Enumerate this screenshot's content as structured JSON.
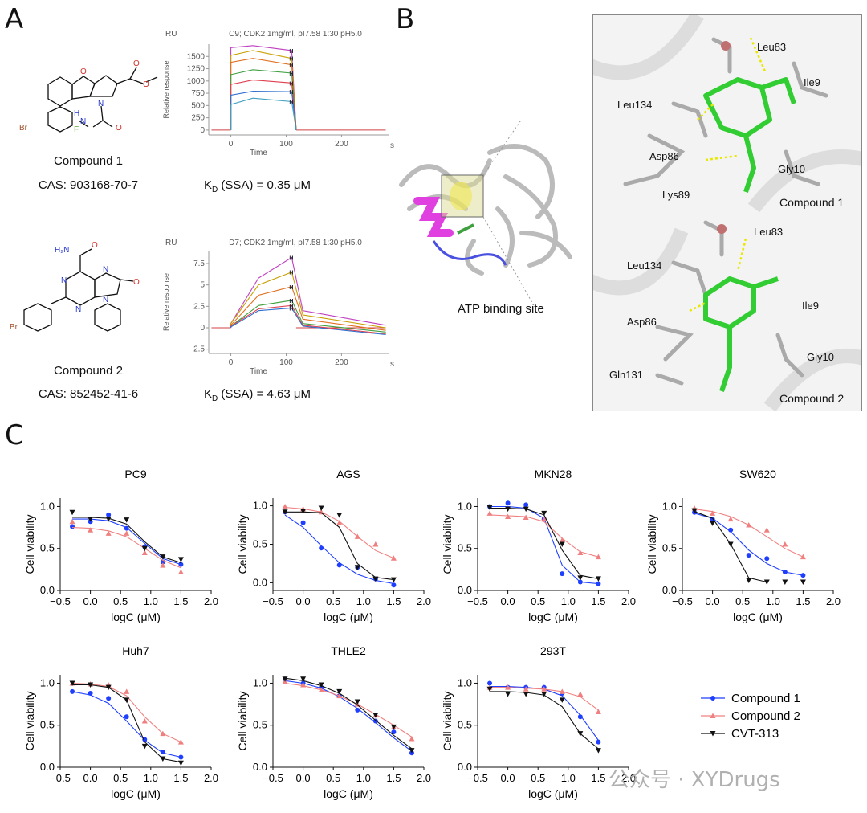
{
  "panels": {
    "a": "A",
    "b": "B",
    "c": "C"
  },
  "compound1": {
    "name": "Compound 1",
    "cas": "CAS:  903168-70-7",
    "kd_prefix": "K",
    "kd_sub": "D",
    "kd_rest": " (SSA) = 0.35 μM",
    "spr": {
      "ru": "RU",
      "title": "C9; CDK2 1mg/ml, pI7.58 1:30 pH5.0",
      "ylabel": "Relative response",
      "xlabel": "Time",
      "xunit": "s",
      "yticks": [
        "1500",
        "1250",
        "1000",
        "750",
        "500",
        "250",
        "0"
      ],
      "xticks": [
        "0",
        "100",
        "200"
      ]
    },
    "atoms": {
      "o1": "O",
      "n1": "N",
      "o2": "O",
      "o3": "O",
      "hn": "H",
      "n2": "N",
      "o4": "O",
      "br": "Br",
      "f": "F"
    }
  },
  "compound2": {
    "name": "Compound 2",
    "cas": "CAS: 852452-41-6",
    "kd_prefix": "K",
    "kd_sub": "D",
    "kd_rest": " (SSA) = 4.63 μM",
    "spr": {
      "ru": "RU",
      "title": "D7; CDK2 1mg/ml, pI7.58 1:30 pH5.0",
      "ylabel": "Relative response",
      "xlabel": "Time",
      "xunit": "s",
      "yticks": [
        "7.5",
        "5",
        "2.5",
        "0",
        "-2.5"
      ],
      "xticks": [
        "0",
        "100",
        "200"
      ]
    },
    "atoms": {
      "h2n": "H₂N",
      "o1": "O",
      "n1": "N",
      "n2": "N",
      "n3": "N",
      "n4": "N",
      "o2": "O",
      "br": "Br"
    }
  },
  "binding": {
    "site_label": "ATP binding site",
    "top": {
      "compound": "Compound 1",
      "residues": [
        "Leu83",
        "Ile9",
        "Leu134",
        "Asp86",
        "Gly10",
        "Lys89"
      ]
    },
    "bottom": {
      "compound": "Compound 2",
      "residues": [
        "Leu83",
        "Leu134",
        "Ile9",
        "Asp86",
        "Gly10",
        "Gln131"
      ]
    }
  },
  "viability": {
    "ylabel": "Cell viability",
    "xlabel": "logC (μM)",
    "legend": [
      "Compound 1",
      "Compound 2",
      "CVT-313"
    ],
    "colors": {
      "c1": "#1f3fff",
      "c2": "#f08080",
      "cvt": "#111111"
    }
  },
  "watermark": "公众号 · XYDrugs",
  "chart_data": [
    {
      "type": "line",
      "title": "C9; CDK2 1mg/ml, pI7.58 1:30 pH5.0",
      "xlabel": "Time",
      "ylabel": "Relative response",
      "xlim": [
        -40,
        285
      ],
      "ylim": [
        -100,
        1750
      ],
      "series": [
        {
          "values": [
            [
              0,
              1680
            ],
            [
              40,
              1720
            ],
            [
              110,
              1620
            ]
          ]
        },
        {
          "values": [
            [
              0,
              1520
            ],
            [
              40,
              1620
            ],
            [
              110,
              1460
            ]
          ]
        },
        {
          "values": [
            [
              0,
              1380
            ],
            [
              40,
              1460
            ],
            [
              110,
              1330
            ]
          ]
        },
        {
          "values": [
            [
              0,
              1130
            ],
            [
              40,
              1230
            ],
            [
              110,
              1160
            ]
          ]
        },
        {
          "values": [
            [
              0,
              930
            ],
            [
              40,
              1020
            ],
            [
              110,
              960
            ]
          ]
        },
        {
          "values": [
            [
              0,
              710
            ],
            [
              40,
              790
            ],
            [
              110,
              780
            ]
          ]
        },
        {
          "values": [
            [
              0,
              520
            ],
            [
              40,
              650
            ],
            [
              110,
              580
            ]
          ]
        }
      ]
    },
    {
      "type": "line",
      "title": "D7; CDK2 1mg/ml, pI7.58 1:30 pH5.0",
      "xlabel": "Time",
      "ylabel": "Relative response",
      "xlim": [
        -40,
        285
      ],
      "ylim": [
        -3,
        9
      ],
      "series": [
        {
          "values": [
            [
              0,
              0.5
            ],
            [
              50,
              5.8
            ],
            [
              110,
              8.2
            ],
            [
              130,
              2
            ],
            [
              280,
              0.3
            ]
          ]
        },
        {
          "values": [
            [
              0,
              0.5
            ],
            [
              50,
              5
            ],
            [
              110,
              6.5
            ],
            [
              130,
              1.5
            ],
            [
              280,
              0
            ]
          ]
        },
        {
          "values": [
            [
              0,
              0.3
            ],
            [
              50,
              3.8
            ],
            [
              110,
              4.8
            ],
            [
              130,
              1
            ],
            [
              280,
              -0.3
            ]
          ]
        },
        {
          "values": [
            [
              0,
              0.2
            ],
            [
              50,
              2.6
            ],
            [
              110,
              3.2
            ],
            [
              130,
              0.5
            ],
            [
              280,
              -0.5
            ]
          ]
        },
        {
          "values": [
            [
              0,
              0.2
            ],
            [
              50,
              2.2
            ],
            [
              110,
              2.6
            ],
            [
              130,
              0.3
            ],
            [
              280,
              -0.7
            ]
          ]
        },
        {
          "values": [
            [
              0,
              0.1
            ],
            [
              50,
              2
            ],
            [
              110,
              2.3
            ],
            [
              130,
              0.2
            ],
            [
              280,
              -0.8
            ]
          ]
        }
      ]
    },
    {
      "type": "line",
      "title": "PC9",
      "xlabel": "logC (μM)",
      "ylabel": "Cell viability",
      "xlim": [
        -0.5,
        2.0
      ],
      "ylim": [
        0,
        1.1
      ],
      "xticks": [
        "-0.5",
        "0.0",
        "0.5",
        "1.0",
        "1.5",
        "2.0"
      ],
      "yticks": [
        "0.0",
        "0.5",
        "1.0"
      ],
      "x": [
        -0.3,
        0.0,
        0.3,
        0.6,
        0.9,
        1.2,
        1.5
      ],
      "series": [
        {
          "name": "Compound 1",
          "values": [
            0.76,
            0.82,
            0.9,
            0.74,
            0.52,
            0.34,
            0.31
          ],
          "fit": [
            0.85,
            0.85,
            0.83,
            0.75,
            0.56,
            0.38,
            0.31
          ]
        },
        {
          "name": "Compound 2",
          "values": [
            0.82,
            0.72,
            0.68,
            0.68,
            0.45,
            0.3,
            0.22
          ],
          "fit": [
            0.75,
            0.74,
            0.71,
            0.64,
            0.5,
            0.36,
            0.27
          ]
        },
        {
          "name": "CVT-313",
          "values": [
            0.93,
            0.85,
            0.85,
            0.84,
            0.5,
            0.4,
            0.37
          ],
          "fit": [
            0.87,
            0.87,
            0.86,
            0.79,
            0.58,
            0.4,
            0.33
          ]
        }
      ]
    },
    {
      "type": "line",
      "title": "AGS",
      "xlabel": "logC (μM)",
      "ylabel": "Cell viability",
      "xlim": [
        -0.5,
        2.0
      ],
      "ylim": [
        -0.1,
        1.1
      ],
      "xticks": [
        "-0.5",
        "0.0",
        "0.5",
        "1.0",
        "1.5",
        "2.0"
      ],
      "yticks": [
        "0.0",
        "0.5",
        "1.0"
      ],
      "x": [
        -0.3,
        0.0,
        0.3,
        0.6,
        0.9,
        1.2,
        1.5
      ],
      "series": [
        {
          "name": "Compound 1",
          "values": [
            0.92,
            0.78,
            0.45,
            0.23,
            0.2,
            0.05,
            -0.03
          ],
          "fit": [
            0.88,
            0.72,
            0.48,
            0.26,
            0.11,
            0.03,
            -0.01
          ]
        },
        {
          "name": "Compound 2",
          "values": [
            0.99,
            0.96,
            0.92,
            0.78,
            0.6,
            0.5,
            0.32
          ],
          "fit": [
            0.98,
            0.96,
            0.92,
            0.8,
            0.6,
            0.42,
            0.32
          ]
        },
        {
          "name": "CVT-313",
          "values": [
            0.92,
            0.93,
            0.97,
            0.88,
            0.2,
            0.05,
            0.04
          ],
          "fit": [
            0.92,
            0.92,
            0.91,
            0.72,
            0.25,
            0.07,
            0.04
          ]
        }
      ]
    },
    {
      "type": "line",
      "title": "MKN28",
      "xlabel": "logC (μM)",
      "ylabel": "Cell viability",
      "xlim": [
        -0.5,
        2.0
      ],
      "ylim": [
        0,
        1.1
      ],
      "xticks": [
        "-0.5",
        "0.0",
        "0.5",
        "1.0",
        "1.5",
        "2.0"
      ],
      "yticks": [
        "0.0",
        "0.5",
        "1.0"
      ],
      "x": [
        -0.3,
        0.0,
        0.3,
        0.6,
        0.9,
        1.2,
        1.5
      ],
      "series": [
        {
          "name": "Compound 1",
          "values": [
            1.0,
            1.04,
            1.02,
            0.85,
            0.2,
            0.1,
            0.08
          ],
          "fit": [
            1.0,
            1.0,
            0.98,
            0.86,
            0.3,
            0.1,
            0.08
          ]
        },
        {
          "name": "Compound 2",
          "values": [
            0.92,
            0.88,
            0.87,
            0.85,
            0.6,
            0.45,
            0.4
          ],
          "fit": [
            0.9,
            0.89,
            0.88,
            0.82,
            0.62,
            0.46,
            0.4
          ]
        },
        {
          "name": "CVT-313",
          "values": [
            0.99,
            0.97,
            0.97,
            0.92,
            0.55,
            0.15,
            0.14
          ],
          "fit": [
            0.98,
            0.98,
            0.97,
            0.9,
            0.48,
            0.18,
            0.14
          ]
        }
      ]
    },
    {
      "type": "line",
      "title": "SW620",
      "xlabel": "logC (μM)",
      "ylabel": "Cell viability",
      "xlim": [
        -0.5,
        2.0
      ],
      "ylim": [
        0,
        1.1
      ],
      "xticks": [
        "-0.5",
        "0.0",
        "0.5",
        "1.0",
        "1.5",
        "2.0"
      ],
      "yticks": [
        "0.0",
        "0.5",
        "1.0"
      ],
      "x": [
        -0.3,
        0.0,
        0.3,
        0.6,
        0.9,
        1.2,
        1.5
      ],
      "series": [
        {
          "name": "Compound 1",
          "values": [
            0.93,
            0.85,
            0.72,
            0.42,
            0.38,
            0.22,
            0.18
          ],
          "fit": [
            0.92,
            0.86,
            0.7,
            0.48,
            0.32,
            0.22,
            0.18
          ]
        },
        {
          "name": "Compound 2",
          "values": [
            0.98,
            0.92,
            0.85,
            0.78,
            0.72,
            0.55,
            0.4
          ],
          "fit": [
            0.97,
            0.94,
            0.88,
            0.78,
            0.64,
            0.5,
            0.4
          ]
        },
        {
          "name": "CVT-313",
          "values": [
            0.95,
            0.8,
            0.55,
            0.12,
            0.1,
            0.1,
            0.1
          ],
          "fit": [
            0.94,
            0.86,
            0.55,
            0.15,
            0.1,
            0.1,
            0.1
          ]
        }
      ]
    },
    {
      "type": "line",
      "title": "Huh7",
      "xlabel": "logC (μM)",
      "ylabel": "Cell viability",
      "xlim": [
        -0.5,
        2.0
      ],
      "ylim": [
        0,
        1.1
      ],
      "xticks": [
        "-0.5",
        "0.0",
        "0.5",
        "1.0",
        "1.5",
        "2.0"
      ],
      "yticks": [
        "0.0",
        "0.5",
        "1.0"
      ],
      "x": [
        -0.3,
        0.0,
        0.3,
        0.6,
        0.9,
        1.2,
        1.5
      ],
      "series": [
        {
          "name": "Compound 1",
          "values": [
            0.9,
            0.88,
            0.82,
            0.6,
            0.33,
            0.18,
            0.12
          ],
          "fit": [
            0.9,
            0.86,
            0.76,
            0.55,
            0.32,
            0.17,
            0.12
          ]
        },
        {
          "name": "Compound 2",
          "values": [
            1.0,
            0.99,
            0.98,
            0.9,
            0.55,
            0.4,
            0.3
          ],
          "fit": [
            1.0,
            0.99,
            0.96,
            0.85,
            0.6,
            0.4,
            0.3
          ]
        },
        {
          "name": "CVT-313",
          "values": [
            1.0,
            0.98,
            0.95,
            0.8,
            0.25,
            0.1,
            0.05
          ],
          "fit": [
            0.98,
            0.98,
            0.95,
            0.8,
            0.3,
            0.1,
            0.06
          ]
        }
      ]
    },
    {
      "type": "line",
      "title": "THLE2",
      "xlabel": "logC (μM)",
      "ylabel": "Cell viability",
      "xlim": [
        -0.5,
        2.0
      ],
      "ylim": [
        0,
        1.1
      ],
      "xticks": [
        "-0.5",
        "0.0",
        "0.5",
        "1.0",
        "1.5",
        "2.0"
      ],
      "yticks": [
        "0.0",
        "0.5",
        "1.0"
      ],
      "x": [
        -0.3,
        0.0,
        0.3,
        0.6,
        0.9,
        1.2,
        1.5,
        1.8
      ],
      "series": [
        {
          "name": "Compound 1",
          "values": [
            1.05,
            1.0,
            0.95,
            0.85,
            0.68,
            0.55,
            0.42,
            0.17
          ],
          "fit": [
            1.03,
            1.0,
            0.94,
            0.84,
            0.7,
            0.53,
            0.35,
            0.19
          ]
        },
        {
          "name": "Compound 2",
          "values": [
            1.02,
            0.98,
            0.92,
            0.85,
            0.75,
            0.62,
            0.48,
            0.34
          ],
          "fit": [
            1.0,
            0.97,
            0.92,
            0.85,
            0.75,
            0.63,
            0.5,
            0.36
          ]
        },
        {
          "name": "CVT-313",
          "values": [
            1.05,
            1.05,
            0.98,
            0.9,
            0.78,
            0.62,
            0.48,
            0.2
          ],
          "fit": [
            1.06,
            1.03,
            0.97,
            0.88,
            0.74,
            0.56,
            0.38,
            0.22
          ]
        }
      ]
    },
    {
      "type": "line",
      "title": "293T",
      "xlabel": "logC (μM)",
      "ylabel": "Cell viability",
      "xlim": [
        -0.5,
        2.0
      ],
      "ylim": [
        0,
        1.1
      ],
      "xticks": [
        "-0.5",
        "0.0",
        "0.5",
        "1.0",
        "1.5",
        "2.0"
      ],
      "yticks": [
        "0.0",
        "0.5",
        "1.0"
      ],
      "x": [
        -0.3,
        0.0,
        0.3,
        0.6,
        0.9,
        1.2,
        1.5
      ],
      "series": [
        {
          "name": "Compound 1",
          "values": [
            1.0,
            0.95,
            0.95,
            0.95,
            0.88,
            0.6,
            0.3
          ],
          "fit": [
            0.96,
            0.96,
            0.95,
            0.93,
            0.85,
            0.62,
            0.32
          ]
        },
        {
          "name": "Compound 2",
          "values": [
            0.95,
            0.95,
            0.93,
            0.93,
            0.9,
            0.87,
            0.66
          ],
          "fit": [
            0.95,
            0.95,
            0.94,
            0.93,
            0.9,
            0.84,
            0.68
          ]
        },
        {
          "name": "CVT-313",
          "values": [
            0.93,
            0.87,
            0.87,
            0.87,
            0.8,
            0.4,
            0.2
          ],
          "fit": [
            0.9,
            0.9,
            0.89,
            0.86,
            0.72,
            0.4,
            0.22
          ]
        }
      ]
    }
  ]
}
